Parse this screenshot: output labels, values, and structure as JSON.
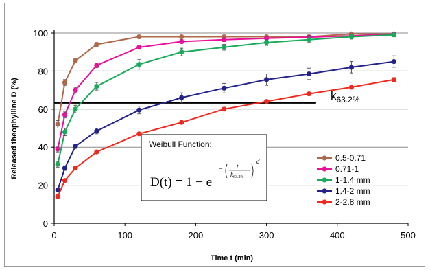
{
  "chart_data": {
    "type": "line",
    "xlabel": "Time t (min)",
    "ylabel": "Released theophylline D (%)",
    "xlim": [
      0,
      500
    ],
    "ylim": [
      0,
      100
    ],
    "xticks": [
      "0",
      "100",
      "200",
      "300",
      "400",
      "500"
    ],
    "yticks": [
      "0",
      "20",
      "40",
      "60",
      "80",
      "100"
    ],
    "grid": "horizontal",
    "legend_position": "bottom-right",
    "reference_line": {
      "y": 63.2,
      "x_range": [
        0,
        370
      ],
      "label_main": "k",
      "label_sub": "63.2%"
    },
    "annotation": {
      "title": "Weibull Function:",
      "formula_lhs": "D(t) = 1 − e",
      "formula_num": "t",
      "formula_den_k": "k",
      "formula_den_sub": "63.2%",
      "formula_exp": "d"
    },
    "series": [
      {
        "name": "0.5-0.71",
        "color": "#b0684a",
        "x": [
          5,
          15,
          30,
          60,
          120,
          180,
          240,
          300,
          360,
          420,
          480
        ],
        "y": [
          52,
          74,
          85.5,
          94,
          98,
          98,
          98,
          98,
          98,
          99.5,
          99.5
        ],
        "err": [
          2,
          1.5,
          1,
          1,
          0.8,
          0.8,
          0.8,
          0.8,
          0.8,
          0.8,
          0.8
        ]
      },
      {
        "name": "0.71-1",
        "color": "#e8119a",
        "x": [
          5,
          15,
          30,
          60,
          120,
          180,
          240,
          300,
          360,
          420,
          480
        ],
        "y": [
          39,
          57,
          70,
          83,
          92.5,
          95.5,
          96.5,
          97.2,
          97.8,
          98.5,
          99.5
        ],
        "err": [
          1.5,
          1.5,
          1.5,
          1.2,
          1,
          1,
          1,
          1,
          1,
          1,
          1
        ]
      },
      {
        "name": "1-1.4 mm",
        "color": "#1aaa5a",
        "x": [
          5,
          15,
          30,
          60,
          120,
          180,
          240,
          300,
          360,
          420,
          480
        ],
        "y": [
          31,
          48,
          60,
          72,
          83.5,
          90,
          92.5,
          95,
          96.5,
          98,
          99
        ],
        "err": [
          1.5,
          2,
          2,
          2,
          2.5,
          2,
          1.5,
          1.5,
          1.5,
          1.2,
          1
        ]
      },
      {
        "name": "1.4-2 mm",
        "color": "#22228a",
        "x": [
          5,
          15,
          30,
          60,
          120,
          180,
          240,
          300,
          360,
          420,
          480
        ],
        "y": [
          17.5,
          29,
          40.5,
          48.5,
          59.5,
          66,
          71,
          75.5,
          78.5,
          82,
          85
        ],
        "err": [
          1,
          1.2,
          1.2,
          1.5,
          2,
          2.5,
          2.5,
          3,
          3,
          3,
          3
        ]
      },
      {
        "name": "2-2.8 mm",
        "color": "#ee2a1f",
        "x": [
          5,
          15,
          30,
          60,
          120,
          180,
          240,
          300,
          360,
          420,
          480
        ],
        "y": [
          14,
          22.5,
          29,
          37.5,
          47,
          53,
          60,
          64,
          68,
          71.5,
          75.5
        ],
        "err": [
          0.8,
          0.8,
          0.8,
          0.8,
          0.8,
          0.8,
          0.8,
          0.8,
          0.8,
          0.8,
          1
        ]
      }
    ]
  }
}
